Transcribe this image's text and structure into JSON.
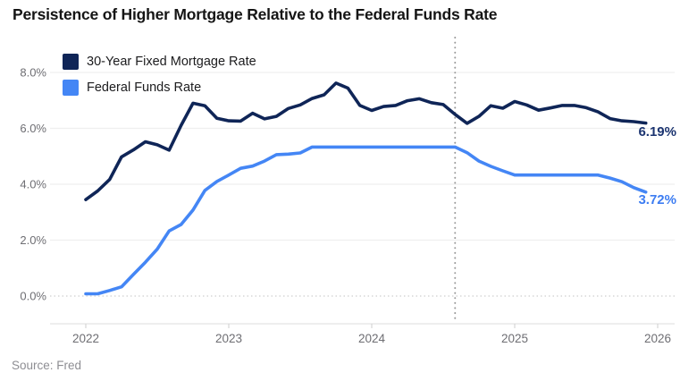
{
  "title": "Persistence of Higher Mortgage Relative to the Federal Funds Rate",
  "source": "Source: Fred",
  "colors": {
    "mortgage_navy": "#0f2557",
    "fed_funds_blue": "#4486f5",
    "grid_line": "#efefef",
    "zero_line_dotted": "#cfcfcf",
    "axis_line": "#e4e4e4",
    "tick_mark": "#d4d4d4",
    "axis_label": "#6e6e73",
    "vline_dotted": "#9a9a9a",
    "end_label_navy": "#1b3470",
    "end_label_blue": "#3d7df2"
  },
  "legend": {
    "items": [
      {
        "label": "30-Year Fixed Mortgage Rate",
        "color": "#0f2557"
      },
      {
        "label": "Federal Funds Rate",
        "color": "#4486f5"
      }
    ]
  },
  "end_labels": {
    "mortgage": "6.19%",
    "fed_funds": "3.72%"
  },
  "chart_data": {
    "type": "line",
    "title": "Persistence of Higher Mortgage Relative to the Federal Funds Rate",
    "xlabel": "",
    "ylabel": "",
    "x_start": 2022.0,
    "x_step_years": 0.0833333,
    "x_unit": "monthly",
    "xlim": [
      2021.75,
      2026.15
    ],
    "ylim": [
      0,
      8.6
    ],
    "grid": "horizontal",
    "legend_position": "top-left",
    "x_ticks": [
      {
        "value": 2022,
        "label": "2022"
      },
      {
        "value": 2023,
        "label": "2023"
      },
      {
        "value": 2024,
        "label": "2024"
      },
      {
        "value": 2025,
        "label": "2025"
      },
      {
        "value": 2026,
        "label": "2026"
      }
    ],
    "y_ticks": [
      {
        "value": 8,
        "label": "8.0%"
      },
      {
        "value": 6,
        "label": "6.0%"
      },
      {
        "value": 4,
        "label": "4.0%"
      },
      {
        "value": 2,
        "label": "2.0%"
      },
      {
        "value": 0,
        "label": "0.0%"
      }
    ],
    "vline_x": 2024.583,
    "series": [
      {
        "name": "30-Year Fixed Mortgage Rate",
        "color": "#0f2557",
        "end_value": 6.19,
        "values": [
          3.45,
          3.76,
          4.17,
          4.98,
          5.23,
          5.52,
          5.41,
          5.22,
          6.11,
          6.9,
          6.81,
          6.36,
          6.27,
          6.26,
          6.54,
          6.34,
          6.43,
          6.71,
          6.84,
          7.07,
          7.2,
          7.62,
          7.44,
          6.82,
          6.64,
          6.78,
          6.82,
          6.99,
          7.06,
          6.92,
          6.85,
          6.5,
          6.18,
          6.43,
          6.81,
          6.72,
          6.96,
          6.84,
          6.65,
          6.73,
          6.82,
          6.82,
          6.74,
          6.59,
          6.35,
          6.27,
          6.24,
          6.19
        ]
      },
      {
        "name": "Federal Funds Rate",
        "color": "#4486f5",
        "end_value": 3.72,
        "values": [
          0.08,
          0.08,
          0.2,
          0.33,
          0.77,
          1.21,
          1.68,
          2.33,
          2.56,
          3.08,
          3.78,
          4.1,
          4.33,
          4.57,
          4.65,
          4.83,
          5.06,
          5.08,
          5.12,
          5.33,
          5.33,
          5.33,
          5.33,
          5.33,
          5.33,
          5.33,
          5.33,
          5.33,
          5.33,
          5.33,
          5.33,
          5.33,
          5.13,
          4.83,
          4.64,
          4.48,
          4.33,
          4.33,
          4.33,
          4.33,
          4.33,
          4.33,
          4.33,
          4.33,
          4.22,
          4.09,
          3.88,
          3.72
        ]
      }
    ]
  }
}
